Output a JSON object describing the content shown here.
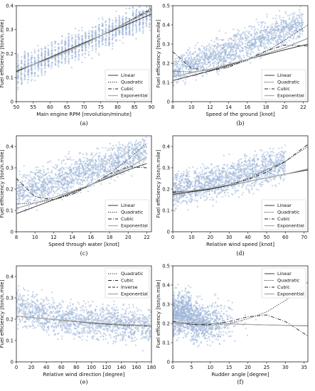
{
  "chart_data": [
    {
      "id": "a",
      "caption": "(a)",
      "type": "scatter",
      "xlabel": "Main engine RPM [revolution/minute]",
      "ylabel": "Fuel efficiency [ton/n.mile]",
      "xlim": [
        50,
        90
      ],
      "ylim": [
        0.0,
        0.4
      ],
      "xticks": [
        50,
        55,
        60,
        65,
        70,
        75,
        80,
        85,
        90
      ],
      "yticks": [
        0.0,
        0.1,
        0.2,
        0.3,
        0.4
      ],
      "scatter": "vertical-stripes",
      "scatter_ranges": [
        [
          0.1,
          0.2
        ],
        [
          0.22,
          0.36
        ]
      ],
      "legend": [
        "Linear",
        "Quadratic",
        "Cubic",
        "Exponential"
      ],
      "legend_position": "lower-right",
      "series": [
        {
          "name": "Linear",
          "style": "solid",
          "color": "#222222",
          "x": [
            50,
            60,
            70,
            80,
            90
          ],
          "y": [
            0.125,
            0.185,
            0.245,
            0.305,
            0.365
          ]
        },
        {
          "name": "Quadratic",
          "style": "dotted",
          "color": "#222222",
          "x": [
            50,
            60,
            70,
            80,
            90
          ],
          "y": [
            0.13,
            0.18,
            0.24,
            0.31,
            0.39
          ]
        },
        {
          "name": "Cubic",
          "style": "dashdot",
          "color": "#222222",
          "x": [
            50,
            60,
            70,
            80,
            90
          ],
          "y": [
            0.13,
            0.18,
            0.24,
            0.31,
            0.385
          ]
        },
        {
          "name": "Exponential",
          "style": "solid",
          "color": "#aaaaaa",
          "x": [
            50,
            60,
            70,
            80,
            90
          ],
          "y": [
            0.13,
            0.18,
            0.24,
            0.31,
            0.38
          ]
        }
      ]
    },
    {
      "id": "b",
      "caption": "(b)",
      "type": "scatter",
      "xlabel": "Speed of the ground [knot]",
      "ylabel": "Fuel efficiency [ton/n.mile]",
      "xlim": [
        8,
        22.5
      ],
      "ylim": [
        0.0,
        0.5
      ],
      "xticks": [
        8,
        10,
        12,
        14,
        16,
        18,
        20,
        22
      ],
      "yticks": [
        0.0,
        0.1,
        0.2,
        0.3,
        0.4,
        0.5
      ],
      "scatter": "cloud",
      "scatter_ranges": [
        [
          8,
          22
        ],
        [
          0.08,
          0.45
        ]
      ],
      "legend": [
        "Linear",
        "Quadratic",
        "Cubic",
        "Exponential"
      ],
      "legend_position": "lower-right",
      "series": [
        {
          "name": "Linear",
          "style": "solid",
          "color": "#222222",
          "x": [
            8,
            12,
            16,
            20,
            22.5
          ],
          "y": [
            0.11,
            0.16,
            0.22,
            0.27,
            0.3
          ]
        },
        {
          "name": "Quadratic",
          "style": "dotted",
          "color": "#222222",
          "x": [
            8,
            10,
            12,
            14,
            16,
            18,
            20,
            22.5
          ],
          "y": [
            0.16,
            0.155,
            0.165,
            0.185,
            0.215,
            0.26,
            0.32,
            0.4
          ]
        },
        {
          "name": "Cubic",
          "style": "dashdot",
          "color": "#222222",
          "x": [
            8,
            10,
            12,
            14,
            16,
            18,
            20,
            22.5
          ],
          "y": [
            0.26,
            0.175,
            0.16,
            0.18,
            0.22,
            0.265,
            0.295,
            0.29
          ]
        },
        {
          "name": "Exponential",
          "style": "solid",
          "color": "#aaaaaa",
          "x": [
            8,
            12,
            16,
            20,
            22.5
          ],
          "y": [
            0.13,
            0.17,
            0.22,
            0.28,
            0.33
          ]
        }
      ]
    },
    {
      "id": "c",
      "caption": "(c)",
      "type": "scatter",
      "xlabel": "Speed through water [knot]",
      "ylabel": "Fuel efficiency [ton/n.mile]",
      "xlim": [
        8,
        22.5
      ],
      "ylim": [
        0.0,
        0.45
      ],
      "xticks": [
        8,
        10,
        12,
        14,
        16,
        18,
        20,
        22
      ],
      "yticks": [
        0.0,
        0.1,
        0.2,
        0.3,
        0.4
      ],
      "scatter": "cloud",
      "scatter_ranges": [
        [
          8,
          22
        ],
        [
          0.1,
          0.42
        ]
      ],
      "legend": [
        "Linear",
        "Quadratic",
        "Cubic",
        "Exponential"
      ],
      "legend_position": "lower-right",
      "series": [
        {
          "name": "Linear",
          "style": "solid",
          "color": "#222222",
          "x": [
            8,
            12,
            16,
            20,
            22
          ],
          "y": [
            0.085,
            0.15,
            0.22,
            0.29,
            0.32
          ]
        },
        {
          "name": "Quadratic",
          "style": "dotted",
          "color": "#222222",
          "x": [
            8,
            10,
            12,
            14,
            16,
            18,
            20,
            22
          ],
          "y": [
            0.13,
            0.135,
            0.15,
            0.18,
            0.22,
            0.27,
            0.34,
            0.415
          ]
        },
        {
          "name": "Cubic",
          "style": "dashdot",
          "color": "#222222",
          "x": [
            8,
            10,
            12,
            14,
            16,
            18,
            20,
            22
          ],
          "y": [
            0.25,
            0.165,
            0.15,
            0.175,
            0.22,
            0.27,
            0.305,
            0.3
          ]
        },
        {
          "name": "Exponential",
          "style": "solid",
          "color": "#aaaaaa",
          "x": [
            8,
            12,
            16,
            20,
            22
          ],
          "y": [
            0.11,
            0.16,
            0.22,
            0.3,
            0.35
          ]
        }
      ]
    },
    {
      "id": "d",
      "caption": "(d)",
      "type": "scatter",
      "xlabel": "Relative wind speed [knot]",
      "ylabel": "Fuel efficiency [ton/n.mile]",
      "xlim": [
        0,
        72
      ],
      "ylim": [
        0.0,
        0.45
      ],
      "xticks": [
        0,
        10,
        20,
        30,
        40,
        50,
        60,
        70
      ],
      "yticks": [
        0.0,
        0.1,
        0.2,
        0.3,
        0.4
      ],
      "scatter": "cloud",
      "scatter_ranges": [
        [
          0,
          60
        ],
        [
          0.11,
          0.36
        ]
      ],
      "legend": [
        "Linear",
        "Quadratic",
        "Cubic",
        "Exponential"
      ],
      "legend_position": "lower-right",
      "series": [
        {
          "name": "Linear",
          "style": "solid",
          "color": "#222222",
          "x": [
            0,
            20,
            40,
            60,
            72
          ],
          "y": [
            0.175,
            0.2,
            0.235,
            0.27,
            0.29
          ]
        },
        {
          "name": "Quadratic",
          "style": "dotted",
          "color": "#222222",
          "x": [
            0,
            10,
            20,
            30,
            40,
            50,
            60,
            72
          ],
          "y": [
            0.19,
            0.19,
            0.2,
            0.22,
            0.25,
            0.29,
            0.33,
            0.4
          ]
        },
        {
          "name": "Cubic",
          "style": "dashdot",
          "color": "#222222",
          "x": [
            0,
            10,
            20,
            30,
            40,
            50,
            60,
            72
          ],
          "y": [
            0.185,
            0.19,
            0.2,
            0.22,
            0.245,
            0.28,
            0.33,
            0.41
          ]
        },
        {
          "name": "Exponential",
          "style": "solid",
          "color": "#aaaaaa",
          "x": [
            0,
            20,
            40,
            60,
            72
          ],
          "y": [
            0.18,
            0.205,
            0.235,
            0.27,
            0.295
          ]
        }
      ]
    },
    {
      "id": "e",
      "caption": "(e)",
      "type": "scatter",
      "xlabel": "Relative wind direction [degree]",
      "ylabel": "Fuel efficiency [ton/n.mile]",
      "xlim": [
        0,
        180
      ],
      "ylim": [
        0.0,
        0.45
      ],
      "xticks": [
        0,
        20,
        40,
        60,
        80,
        100,
        120,
        140,
        160,
        180
      ],
      "yticks": [
        0.0,
        0.1,
        0.2,
        0.3,
        0.4
      ],
      "scatter": "band",
      "scatter_ranges": [
        [
          0,
          180
        ],
        [
          0.1,
          0.4
        ]
      ],
      "legend": [
        "Quadratic",
        "Cubic",
        "Inverse",
        "Exponential"
      ],
      "legend_position": "upper-right",
      "series": [
        {
          "name": "Quadratic",
          "style": "dotted",
          "color": "#222222",
          "x": [
            0,
            30,
            60,
            90,
            120,
            150,
            180
          ],
          "y": [
            0.215,
            0.205,
            0.195,
            0.185,
            0.175,
            0.17,
            0.17
          ]
        },
        {
          "name": "Cubic",
          "style": "dashdot",
          "color": "#222222",
          "x": [
            0,
            30,
            60,
            90,
            120,
            150,
            180
          ],
          "y": [
            0.215,
            0.205,
            0.195,
            0.185,
            0.178,
            0.175,
            0.165
          ]
        },
        {
          "name": "Inverse",
          "style": "dashed",
          "color": "#222222",
          "x": [
            0,
            30,
            60,
            90,
            120,
            150,
            180
          ],
          "y": [
            0.215,
            0.205,
            0.195,
            0.186,
            0.178,
            0.172,
            0.17
          ]
        },
        {
          "name": "Exponential",
          "style": "solid",
          "color": "#aaaaaa",
          "x": [
            0,
            30,
            60,
            90,
            120,
            150,
            180
          ],
          "y": [
            0.215,
            0.205,
            0.196,
            0.187,
            0.18,
            0.174,
            0.17
          ]
        }
      ]
    },
    {
      "id": "f",
      "caption": "(f)",
      "type": "scatter",
      "xlabel": "Rudder angle [degree]",
      "ylabel": "Fuel efficiency [ton/n.mile]",
      "xlim": [
        0,
        36
      ],
      "ylim": [
        0.0,
        0.5
      ],
      "xticks": [
        0,
        5,
        10,
        15,
        20,
        25,
        30,
        35
      ],
      "yticks": [
        0.0,
        0.1,
        0.2,
        0.3,
        0.4,
        0.5
      ],
      "scatter": "left-dense",
      "scatter_ranges": [
        [
          0,
          25
        ],
        [
          0.1,
          0.4
        ]
      ],
      "legend": [
        "Linear",
        "Quadratic",
        "Cubic",
        "Exponential"
      ],
      "legend_position": "upper-right",
      "series": [
        {
          "name": "Linear",
          "style": "solid",
          "color": "#222222",
          "x": [
            0,
            10,
            20,
            30,
            36
          ],
          "y": [
            0.205,
            0.2,
            0.195,
            0.19,
            0.187
          ]
        },
        {
          "name": "Quadratic",
          "style": "dotted",
          "color": "#222222",
          "x": [
            0,
            5,
            10,
            15,
            20,
            25,
            30,
            36
          ],
          "y": [
            0.205,
            0.195,
            0.19,
            0.2,
            0.225,
            0.26,
            0.32,
            0.415
          ]
        },
        {
          "name": "Cubic",
          "style": "dashdot",
          "color": "#222222",
          "x": [
            0,
            5,
            10,
            15,
            20,
            25,
            30,
            36
          ],
          "y": [
            0.21,
            0.195,
            0.195,
            0.21,
            0.235,
            0.245,
            0.21,
            0.135
          ]
        },
        {
          "name": "Exponential",
          "style": "solid",
          "color": "#aaaaaa",
          "x": [
            0,
            10,
            20,
            30,
            36
          ],
          "y": [
            0.205,
            0.2,
            0.195,
            0.19,
            0.188
          ]
        }
      ]
    }
  ],
  "colors": {
    "scatter": "#9fb6d8",
    "axis": "#222222"
  }
}
